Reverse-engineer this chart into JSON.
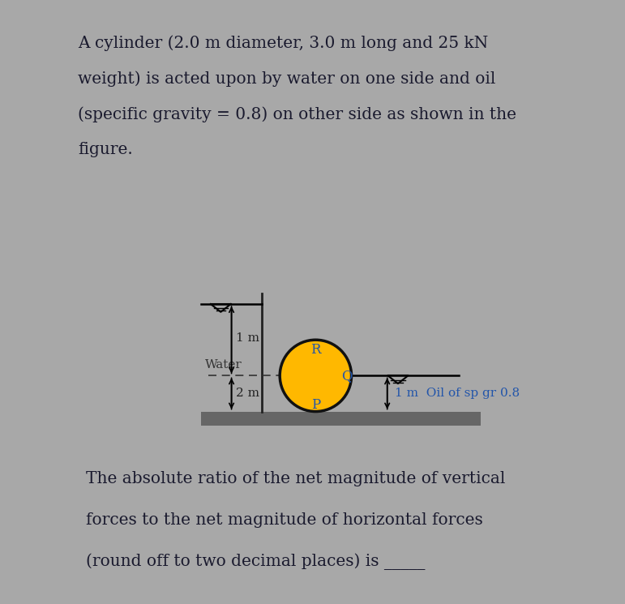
{
  "bg_color": "#a8a8a8",
  "title_box_color": "#FFB800",
  "title_text_line1": "A cylinder (2.0 m diameter, 3.0 m long and 25 kN",
  "title_text_line2": "weight) is acted upon by water on one side and oil",
  "title_text_line3": "(specific gravity = 0.8) on other side as shown in the",
  "title_text_line4": "figure.",
  "title_text_color": "#1a1a2e",
  "diagram_box_color": "#ffffff",
  "question_box_color": "#ffffff",
  "question_text_line1": "The absolute ratio of the net magnitude of vertical",
  "question_text_line2": "forces to the net magnitude of horizontal forces",
  "question_text_line3": "(round off to two decimal places) is _____",
  "question_text_color": "#1a1a2e",
  "cylinder_color": "#FFB800",
  "cylinder_edge_color": "#111111",
  "water_label": "Water",
  "water_label_color": "#333333",
  "oil_label": "1 m  Oil of sp gr 0.8",
  "oil_label_color": "#2255aa",
  "dim_color": "#222222",
  "point_R": "R",
  "point_Q": "Q",
  "point_P": "P",
  "point_color": "#2255aa",
  "dashed_color": "#333333",
  "wall_color": "#222222",
  "floor_color": "#666666",
  "font_size_title": 14.5,
  "font_size_question": 14.5,
  "font_size_diagram": 11,
  "font_size_points": 12
}
